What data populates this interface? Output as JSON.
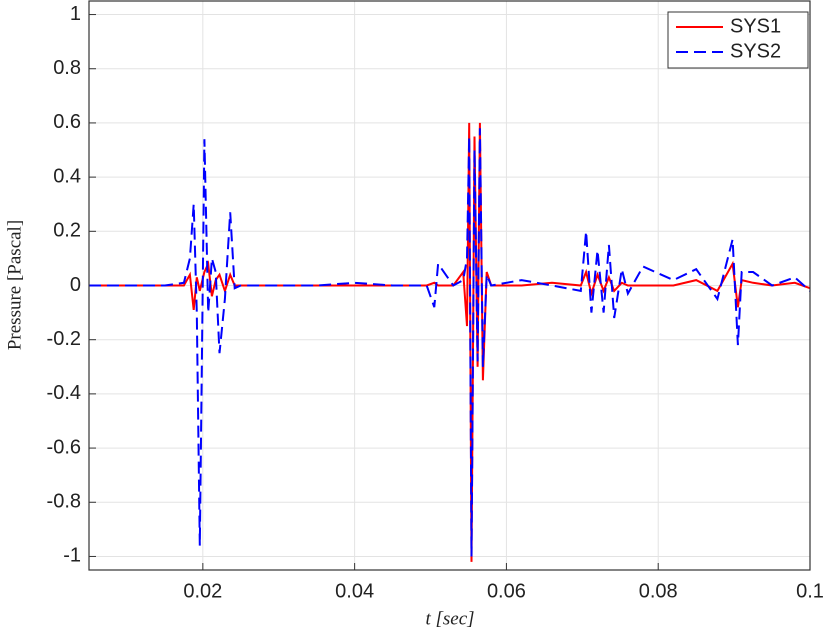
{
  "chart_data": {
    "type": "line",
    "xlabel": "t [sec]",
    "ylabel": "Pressure [Pascal]",
    "x": [
      0.005,
      0.01,
      0.015,
      0.0175,
      0.0183,
      0.0188,
      0.0192,
      0.0196,
      0.0202,
      0.0207,
      0.0212,
      0.0217,
      0.0222,
      0.0229,
      0.0236,
      0.0242,
      0.025,
      0.03,
      0.035,
      0.04,
      0.045,
      0.0495,
      0.0505,
      0.051,
      0.053,
      0.0543,
      0.0548,
      0.0551,
      0.0554,
      0.0558,
      0.0562,
      0.0565,
      0.0569,
      0.0574,
      0.058,
      0.062,
      0.066,
      0.0698,
      0.0705,
      0.0712,
      0.072,
      0.0728,
      0.0735,
      0.0742,
      0.0752,
      0.076,
      0.078,
      0.082,
      0.085,
      0.0878,
      0.0898,
      0.0905,
      0.091,
      0.0925,
      0.095,
      0.098,
      0.1
    ],
    "series": [
      {
        "name": "SYS1",
        "color": "#ff0000",
        "dash": false,
        "values": [
          0,
          0,
          0,
          0,
          0.04,
          -0.09,
          0.03,
          -0.02,
          0.05,
          0.08,
          -0.04,
          0.02,
          0.04,
          -0.02,
          0.04,
          0,
          0,
          0,
          0,
          0,
          0,
          0,
          0.01,
          0,
          0,
          0.05,
          -0.15,
          0.6,
          -1.02,
          0.55,
          -0.3,
          0.6,
          -0.35,
          0.05,
          0,
          0,
          0.01,
          0,
          0.05,
          -0.03,
          0.04,
          -0.02,
          0.03,
          -0.02,
          0.01,
          0,
          0,
          0,
          0.02,
          -0.02,
          0.08,
          -0.08,
          0.02,
          0.01,
          0,
          0.01,
          -0.01
        ]
      },
      {
        "name": "SYS2",
        "color": "#0000ff",
        "dash": true,
        "values": [
          0,
          0,
          0,
          0.01,
          0.1,
          0.3,
          -0.1,
          -0.96,
          0.54,
          -0.1,
          0.1,
          0.05,
          -0.25,
          -0.05,
          0.27,
          -0.01,
          0,
          0,
          0,
          0.01,
          0,
          0,
          -0.08,
          0.08,
          0,
          0.02,
          0.1,
          0.55,
          -1.0,
          0.5,
          -0.28,
          0.58,
          -0.3,
          0.04,
          0,
          0.02,
          0,
          -0.02,
          0.2,
          -0.1,
          0.13,
          -0.1,
          0.15,
          -0.12,
          0.06,
          -0.03,
          0.07,
          0.02,
          0.06,
          -0.05,
          0.17,
          -0.22,
          0.05,
          0.05,
          0,
          0.03,
          -0.02
        ]
      }
    ],
    "xlim": [
      0.005,
      0.1
    ],
    "xticks": [
      0.02,
      0.04,
      0.06,
      0.08,
      0.1
    ],
    "ylim": [
      -1.05,
      1.05
    ],
    "yticks": [
      -1,
      -0.8,
      -0.6,
      -0.4,
      -0.2,
      0,
      0.2,
      0.4,
      0.6,
      0.8,
      1
    ],
    "grid": true,
    "legend": "top-right"
  }
}
